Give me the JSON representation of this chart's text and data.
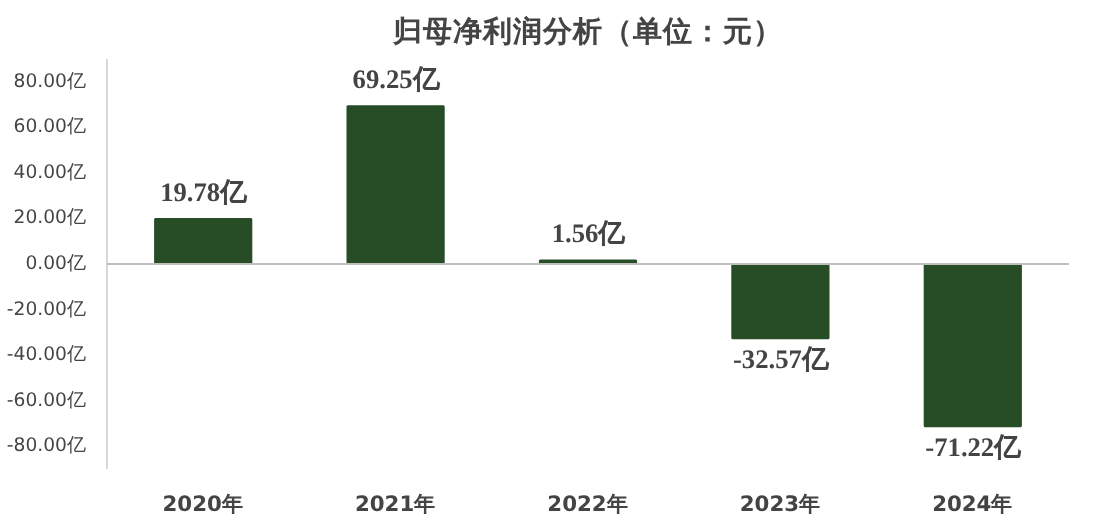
{
  "chart_data": {
    "type": "bar",
    "title": "归母净利润分析（单位：元）",
    "categories": [
      "2020年",
      "2021年",
      "2022年",
      "2023年",
      "2024年"
    ],
    "values": [
      19.78,
      69.25,
      1.56,
      -32.57,
      -71.22
    ],
    "value_labels": [
      "19.78亿",
      "69.25亿",
      "1.56亿",
      "-32.57亿",
      "-71.22亿"
    ],
    "color": "#264d26",
    "ylim": [
      -90,
      90
    ],
    "yticks": [
      {
        "value": 80,
        "label": "80.00亿"
      },
      {
        "value": 60,
        "label": "60.00亿"
      },
      {
        "value": 40,
        "label": "40.00亿"
      },
      {
        "value": 20,
        "label": "20.00亿"
      },
      {
        "value": 0,
        "label": "0.00亿"
      },
      {
        "value": -20,
        "label": "-20.00亿"
      },
      {
        "value": -40,
        "label": "-40.00亿"
      },
      {
        "value": -60,
        "label": "-60.00亿"
      },
      {
        "value": -80,
        "label": "-80.00亿"
      }
    ],
    "grid": false,
    "ref_lines": [
      {
        "axis": "y",
        "value": 0,
        "color": "#bfbfbf"
      }
    ]
  }
}
